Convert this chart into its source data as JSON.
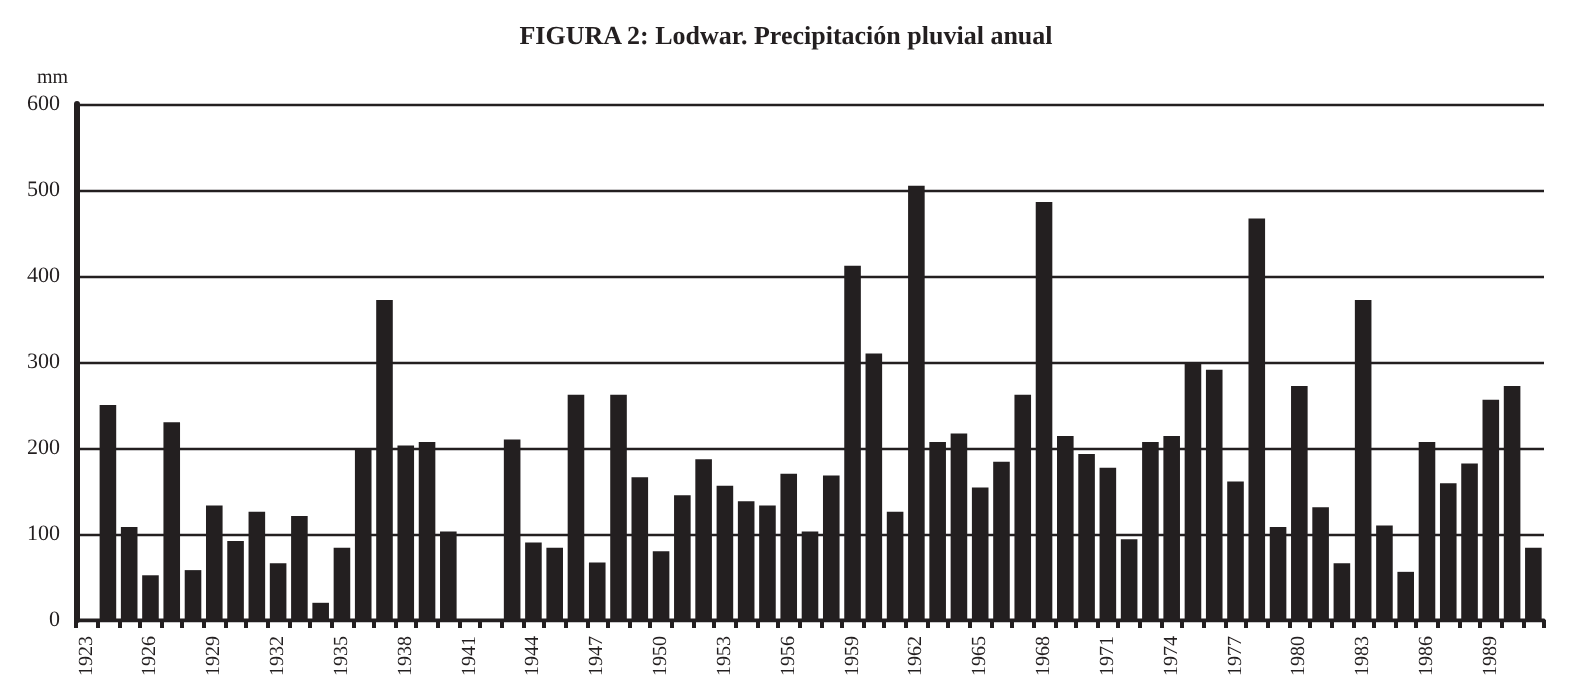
{
  "chart_data": {
    "type": "bar",
    "title": "FIGURA 2: Lodwar. Precipitación pluvial anual",
    "ylabel": "mm",
    "categories": [
      "1923",
      null,
      null,
      "1926",
      null,
      null,
      "1929",
      null,
      null,
      "1932",
      null,
      null,
      "1935",
      null,
      null,
      "1938",
      null,
      null,
      "1941",
      null,
      null,
      "1944",
      null,
      null,
      "1947",
      null,
      null,
      "1950",
      null,
      null,
      "1953",
      null,
      null,
      "1956",
      null,
      null,
      "1959",
      null,
      null,
      "1962",
      null,
      null,
      "1965",
      null,
      null,
      "1968",
      null,
      null,
      "1971",
      null,
      null,
      "1974",
      null,
      null,
      "1977",
      null,
      null,
      "1980",
      null,
      null,
      "1983",
      null,
      null,
      "1986",
      null,
      null,
      "1989",
      null,
      null
    ],
    "values": [
      null,
      250,
      108,
      52,
      230,
      58,
      133,
      92,
      126,
      66,
      121,
      20,
      84,
      200,
      372,
      203,
      207,
      103,
      null,
      null,
      210,
      90,
      84,
      262,
      67,
      262,
      166,
      80,
      145,
      187,
      156,
      138,
      133,
      170,
      103,
      168,
      412,
      310,
      126,
      505,
      207,
      217,
      154,
      184,
      262,
      486,
      214,
      193,
      177,
      94,
      207,
      214,
      299,
      291,
      161,
      467,
      108,
      272,
      131,
      66,
      372,
      110,
      56,
      207,
      159,
      182,
      256,
      272,
      84
    ],
    "color": "#231f20",
    "ylim": [
      0,
      600
    ],
    "yticks": [
      0,
      100,
      200,
      300,
      400,
      500,
      600
    ],
    "grid": "y"
  }
}
